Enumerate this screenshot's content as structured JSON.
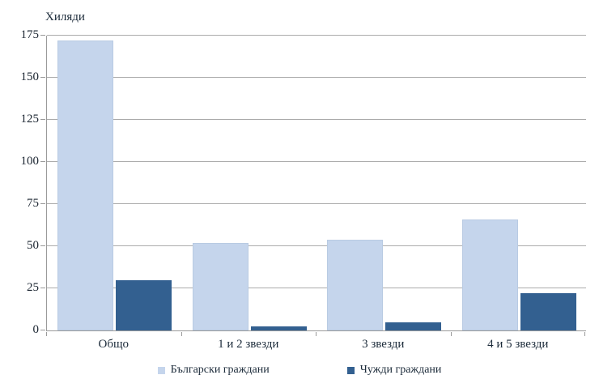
{
  "chart_data": {
    "type": "bar",
    "title": "",
    "y_axis_title": "Хиляди",
    "categories": [
      "Общо",
      "1 и 2 звезди",
      "3 звезди",
      "4 и 5 звезди"
    ],
    "series": [
      {
        "name": "Български граждани",
        "color": "#C5D5EC",
        "values": [
          172,
          52,
          54,
          66
        ]
      },
      {
        "name": "Чужди граждани",
        "color": "#336090",
        "values": [
          30,
          2.5,
          5,
          22
        ]
      }
    ],
    "y_ticks": [
      0,
      25,
      50,
      75,
      100,
      125,
      150,
      175
    ],
    "ylim": [
      0,
      175
    ],
    "grid": true,
    "gridline_color": "#ababab",
    "axis_color": "#9a9a9a",
    "text_color": "#1c2b3a",
    "legend_position": "bottom"
  }
}
